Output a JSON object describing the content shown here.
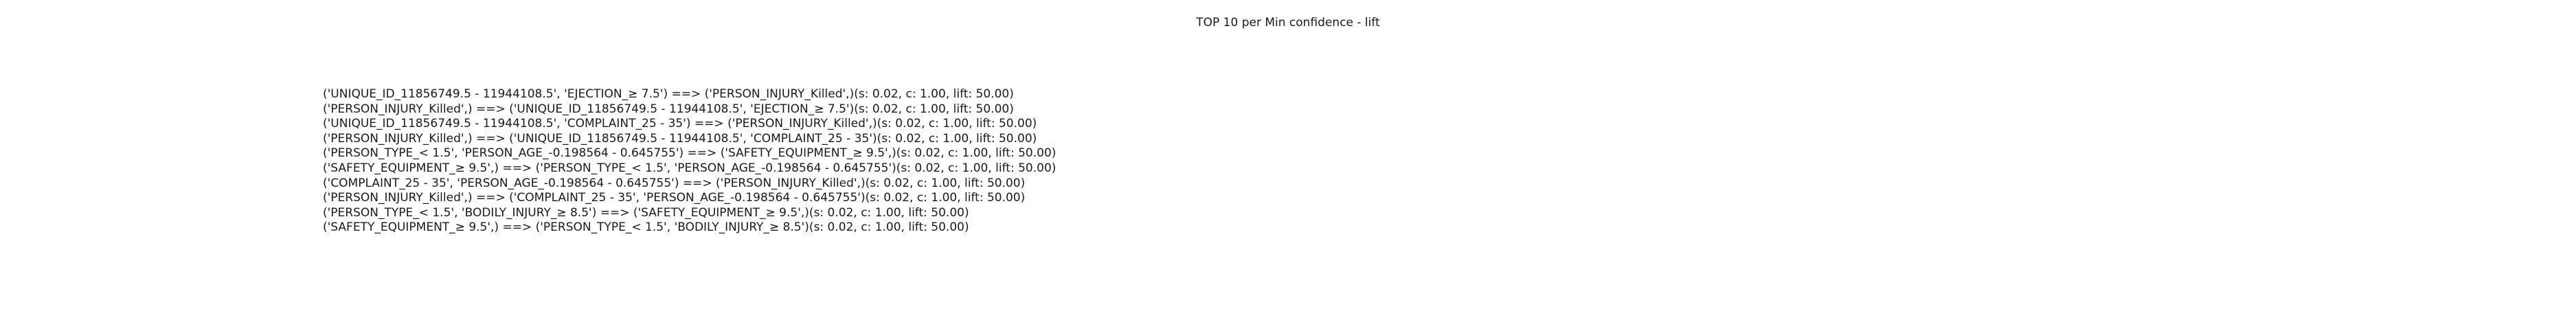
{
  "chart_data": {
    "type": "table",
    "title": "TOP 10 per Min confidence - lift",
    "rules": [
      "('UNIQUE_ID_11856749.5 - 11944108.5', 'EJECTION_≥ 7.5') ==> ('PERSON_INJURY_Killed',)(s: 0.02, c: 1.00, lift: 50.00)",
      "('PERSON_INJURY_Killed',) ==> ('UNIQUE_ID_11856749.5 - 11944108.5', 'EJECTION_≥ 7.5')(s: 0.02, c: 1.00, lift: 50.00)",
      "('UNIQUE_ID_11856749.5 - 11944108.5', 'COMPLAINT_25 - 35') ==> ('PERSON_INJURY_Killed',)(s: 0.02, c: 1.00, lift: 50.00)",
      "('PERSON_INJURY_Killed',) ==> ('UNIQUE_ID_11856749.5 - 11944108.5', 'COMPLAINT_25 - 35')(s: 0.02, c: 1.00, lift: 50.00)",
      "('PERSON_TYPE_< 1.5', 'PERSON_AGE_-0.198564 - 0.645755') ==> ('SAFETY_EQUIPMENT_≥ 9.5',)(s: 0.02, c: 1.00, lift: 50.00)",
      "('SAFETY_EQUIPMENT_≥ 9.5',) ==> ('PERSON_TYPE_< 1.5', 'PERSON_AGE_-0.198564 - 0.645755')(s: 0.02, c: 1.00, lift: 50.00)",
      "('COMPLAINT_25 - 35', 'PERSON_AGE_-0.198564 - 0.645755') ==> ('PERSON_INJURY_Killed',)(s: 0.02, c: 1.00, lift: 50.00)",
      "('PERSON_INJURY_Killed',) ==> ('COMPLAINT_25 - 35', 'PERSON_AGE_-0.198564 - 0.645755')(s: 0.02, c: 1.00, lift: 50.00)",
      "('PERSON_TYPE_< 1.5', 'BODILY_INJURY_≥ 8.5') ==> ('SAFETY_EQUIPMENT_≥ 9.5',)(s: 0.02, c: 1.00, lift: 50.00)",
      "('SAFETY_EQUIPMENT_≥ 9.5',) ==> ('PERSON_TYPE_< 1.5', 'BODILY_INJURY_≥ 8.5')(s: 0.02, c: 1.00, lift: 50.00)"
    ],
    "values": [
      {
        "support": 0.02,
        "confidence": 1.0,
        "lift": 50.0
      },
      {
        "support": 0.02,
        "confidence": 1.0,
        "lift": 50.0
      },
      {
        "support": 0.02,
        "confidence": 1.0,
        "lift": 50.0
      },
      {
        "support": 0.02,
        "confidence": 1.0,
        "lift": 50.0
      },
      {
        "support": 0.02,
        "confidence": 1.0,
        "lift": 50.0
      },
      {
        "support": 0.02,
        "confidence": 1.0,
        "lift": 50.0
      },
      {
        "support": 0.02,
        "confidence": 1.0,
        "lift": 50.0
      },
      {
        "support": 0.02,
        "confidence": 1.0,
        "lift": 50.0
      },
      {
        "support": 0.02,
        "confidence": 1.0,
        "lift": 50.0
      },
      {
        "support": 0.02,
        "confidence": 1.0,
        "lift": 50.0
      }
    ]
  }
}
